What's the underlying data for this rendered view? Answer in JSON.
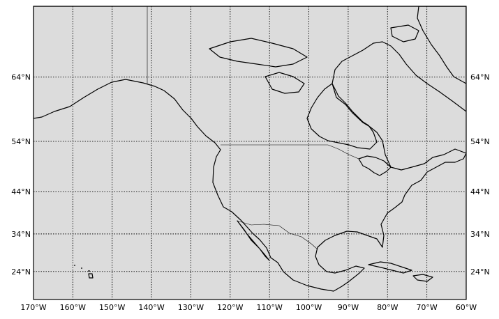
{
  "map": {
    "projection": "mercator",
    "background_color": "#dcdcdc",
    "coastline_color": "#000000",
    "lon_range": [
      -170,
      -60
    ],
    "lat_range": [
      16,
      72
    ],
    "meridians": [
      {
        "value": -170,
        "label": "170°W"
      },
      {
        "value": -160,
        "label": "160°W"
      },
      {
        "value": -150,
        "label": "150°W"
      },
      {
        "value": -140,
        "label": "140°W"
      },
      {
        "value": -130,
        "label": "130°W"
      },
      {
        "value": -120,
        "label": "120°W"
      },
      {
        "value": -110,
        "label": "110°W"
      },
      {
        "value": -100,
        "label": "100°W"
      },
      {
        "value": -90,
        "label": "90°W"
      },
      {
        "value": -80,
        "label": "80°W"
      },
      {
        "value": -70,
        "label": "70°W"
      },
      {
        "value": -60,
        "label": "60°W"
      }
    ],
    "parallels": [
      {
        "value": 64,
        "label": "64°N"
      },
      {
        "value": 54,
        "label": "54°N"
      },
      {
        "value": 44,
        "label": "44°N"
      },
      {
        "value": 34,
        "label": "34°N"
      },
      {
        "value": 24,
        "label": "24°N"
      }
    ]
  }
}
